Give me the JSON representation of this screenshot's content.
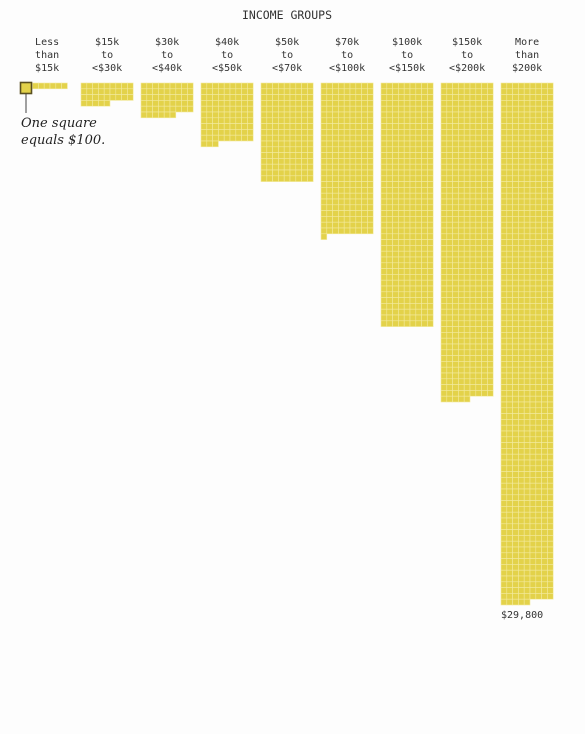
{
  "chart_data": {
    "type": "waffle",
    "title": "INCOME GROUPS",
    "unit_note": "One square equals $100.",
    "unit_value": 100,
    "squares_per_row": 9,
    "square_color": "#e3d24a",
    "grid_color": "#f3ea9e",
    "categories": [
      {
        "label": [
          "Less",
          "than",
          "$15k"
        ],
        "value": 800
      },
      {
        "label": [
          "$15k",
          "to",
          "<$30k"
        ],
        "value": 3200
      },
      {
        "label": [
          "$30k",
          "to",
          "<$40k"
        ],
        "value": 5100
      },
      {
        "label": [
          "$40k",
          "to",
          "<$50k"
        ],
        "value": 9300
      },
      {
        "label": [
          "$50k",
          "to",
          "<$70k"
        ],
        "value": 15300
      },
      {
        "label": [
          "$70k",
          "to",
          "<$100k"
        ],
        "value": 23500
      },
      {
        "label": [
          "$100k",
          "to",
          "<$150k"
        ],
        "value": 37800
      },
      {
        "label": [
          "$150k",
          "to",
          "<$200k"
        ],
        "value": 49100
      },
      {
        "label": [
          "More",
          "than",
          "$200k"
        ],
        "value": 80600
      }
    ],
    "annotations": [
      {
        "category_index": 8,
        "text": "$29,800"
      }
    ]
  }
}
